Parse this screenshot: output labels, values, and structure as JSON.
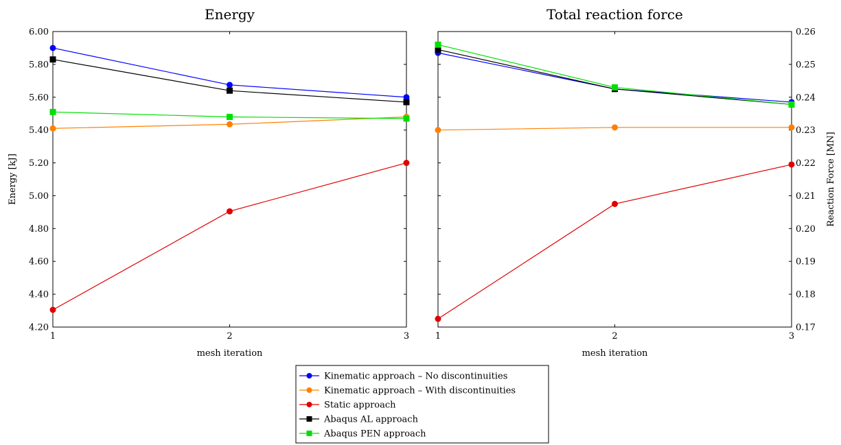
{
  "chart_data": [
    {
      "type": "line",
      "title": "Energy",
      "xlabel": "mesh iteration",
      "ylabel": "Energy [kJ]",
      "x": [
        1,
        2,
        3
      ],
      "xlim": [
        1,
        3
      ],
      "ylim": [
        4.2,
        6.0
      ],
      "yticks": [
        "4.20",
        "4.40",
        "4.60",
        "4.80",
        "5.00",
        "5.20",
        "5.40",
        "5.60",
        "5.80",
        "6.00"
      ],
      "xticks": [
        "1",
        "2",
        "3"
      ],
      "y_axis_side": "left",
      "grid": false,
      "series": [
        {
          "name": "Kinematic approach – No discontinuities",
          "color": "#0000ff",
          "marker": "circle",
          "values": [
            5.9,
            5.675,
            5.6
          ]
        },
        {
          "name": "Kinematic approach – With discontinuities",
          "color": "#ff8000",
          "marker": "circle",
          "values": [
            5.41,
            5.435,
            5.48
          ]
        },
        {
          "name": "Static approach",
          "color": "#e00000",
          "marker": "circle",
          "values": [
            4.305,
            4.905,
            5.2
          ]
        },
        {
          "name": "Abaqus AL approach",
          "color": "#000000",
          "marker": "square",
          "values": [
            5.83,
            5.64,
            5.57
          ]
        },
        {
          "name": "Abaqus PEN approach",
          "color": "#00e000",
          "marker": "square",
          "values": [
            5.51,
            5.48,
            5.47
          ]
        }
      ]
    },
    {
      "type": "line",
      "title": "Total reaction force",
      "xlabel": "mesh iteration",
      "ylabel": "Reaction Force [MN]",
      "x": [
        1,
        2,
        3
      ],
      "xlim": [
        1,
        3
      ],
      "ylim": [
        0.17,
        0.26
      ],
      "yticks": [
        "0.17",
        "0.18",
        "0.19",
        "0.20",
        "0.21",
        "0.22",
        "0.23",
        "0.24",
        "0.25",
        "0.26"
      ],
      "xticks": [
        "1",
        "2",
        "3"
      ],
      "y_axis_side": "right",
      "grid": false,
      "series": [
        {
          "name": "Kinematic approach – No discontinuities",
          "color": "#0000ff",
          "marker": "circle",
          "values": [
            0.2535,
            0.2425,
            0.2385
          ]
        },
        {
          "name": "Kinematic approach – With discontinuities",
          "color": "#ff8000",
          "marker": "circle",
          "values": [
            0.23,
            0.2308,
            0.2308
          ]
        },
        {
          "name": "Static approach",
          "color": "#e00000",
          "marker": "circle",
          "values": [
            0.1725,
            0.2075,
            0.2195
          ]
        },
        {
          "name": "Abaqus AL approach",
          "color": "#000000",
          "marker": "square",
          "values": [
            0.2545,
            0.2425,
            0.2378
          ]
        },
        {
          "name": "Abaqus PEN approach",
          "color": "#00e000",
          "marker": "square",
          "values": [
            0.256,
            0.243,
            0.2378
          ]
        }
      ]
    }
  ],
  "legend": {
    "placement": "bottom-center",
    "entries": [
      {
        "label": "Kinematic approach – No discontinuities",
        "color": "#0000ff",
        "marker": "circle"
      },
      {
        "label": "Kinematic approach – With discontinuities",
        "color": "#ff8000",
        "marker": "circle"
      },
      {
        "label": "Static approach",
        "color": "#e00000",
        "marker": "circle"
      },
      {
        "label": "Abaqus AL approach",
        "color": "#000000",
        "marker": "square"
      },
      {
        "label": "Abaqus PEN approach",
        "color": "#00e000",
        "marker": "square"
      }
    ]
  }
}
